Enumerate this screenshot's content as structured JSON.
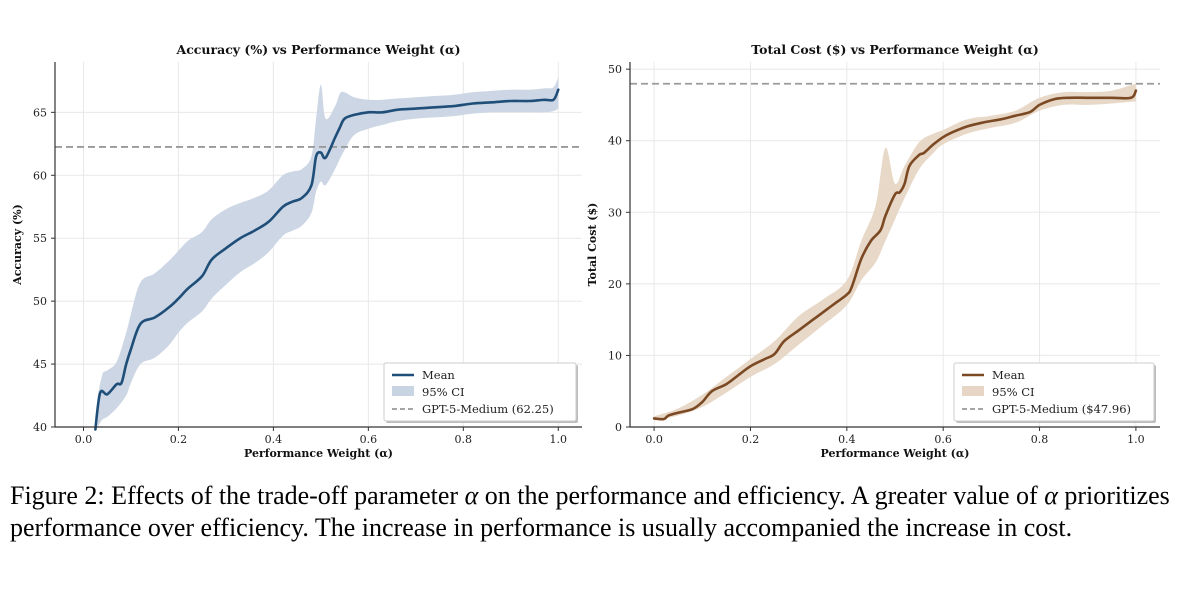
{
  "chart_data": [
    {
      "type": "line",
      "title": "Accuracy (%) vs Performance Weight (α)",
      "xlabel": "Performance Weight (α)",
      "ylabel": "Accuracy (%)",
      "xlim": [
        -0.06,
        1.05
      ],
      "ylim": [
        40,
        69
      ],
      "xticks": [
        0.0,
        0.2,
        0.4,
        0.6,
        0.8,
        1.0
      ],
      "xtick_labels": [
        "0.0",
        "0.2",
        "0.4",
        "0.6",
        "0.8",
        "1.0"
      ],
      "yticks": [
        40,
        45,
        50,
        55,
        60,
        65
      ],
      "ytick_labels": [
        "40",
        "45",
        "50",
        "55",
        "60",
        "65"
      ],
      "grid": true,
      "legend_position": "bottom-right",
      "reference_line": {
        "label": "GPT-5-Medium (62.25)",
        "value": 62.25
      },
      "series": [
        {
          "name": "Mean",
          "color": "#1f4e79",
          "x": [
            0.025,
            0.035,
            0.05,
            0.07,
            0.08,
            0.09,
            0.1,
            0.12,
            0.15,
            0.18,
            0.2,
            0.22,
            0.25,
            0.27,
            0.3,
            0.33,
            0.36,
            0.39,
            0.42,
            0.44,
            0.46,
            0.48,
            0.49,
            0.5,
            0.51,
            0.53,
            0.54,
            0.55,
            0.57,
            0.6,
            0.63,
            0.66,
            0.7,
            0.74,
            0.78,
            0.82,
            0.86,
            0.9,
            0.94,
            0.97,
            0.99,
            1.0
          ],
          "y": [
            39.8,
            42.7,
            42.6,
            43.4,
            43.5,
            45.0,
            46.2,
            48.2,
            48.7,
            49.5,
            50.2,
            51.0,
            52.0,
            53.3,
            54.2,
            55.0,
            55.6,
            56.3,
            57.5,
            57.9,
            58.2,
            59.2,
            61.5,
            61.8,
            61.4,
            63.0,
            63.8,
            64.5,
            64.8,
            65.0,
            65.0,
            65.2,
            65.3,
            65.4,
            65.5,
            65.7,
            65.8,
            65.9,
            65.9,
            66.0,
            66.0,
            66.8
          ]
        },
        {
          "name": "95% CI",
          "color": "#c9d4e3",
          "x": [
            0.03,
            0.04,
            0.05,
            0.07,
            0.09,
            0.1,
            0.12,
            0.15,
            0.18,
            0.2,
            0.22,
            0.25,
            0.27,
            0.3,
            0.33,
            0.36,
            0.39,
            0.42,
            0.44,
            0.46,
            0.48,
            0.49,
            0.5,
            0.51,
            0.53,
            0.54,
            0.55,
            0.57,
            0.6,
            0.63,
            0.66,
            0.7,
            0.74,
            0.78,
            0.82,
            0.86,
            0.9,
            0.94,
            0.97,
            0.99,
            1.0
          ],
          "lower": [
            40.0,
            40.6,
            40.8,
            41.5,
            42.5,
            43.5,
            45.0,
            45.5,
            46.5,
            47.5,
            48.3,
            49.2,
            50.2,
            51.3,
            52.3,
            53.0,
            53.9,
            55.2,
            55.6,
            56.0,
            57.0,
            58.7,
            59.5,
            59.2,
            60.5,
            61.3,
            62.0,
            63.2,
            63.7,
            64.0,
            64.3,
            64.5,
            64.6,
            64.7,
            64.9,
            65.0,
            65.0,
            65.0,
            65.0,
            65.1,
            65.3
          ],
          "upper": [
            42.5,
            44.2,
            44.5,
            45.2,
            47.5,
            49.0,
            51.5,
            52.2,
            53.2,
            54.0,
            54.8,
            55.5,
            56.5,
            57.3,
            57.8,
            58.2,
            58.8,
            60.0,
            60.3,
            60.5,
            61.5,
            64.5,
            67.2,
            64.5,
            65.5,
            66.5,
            66.6,
            66.2,
            66.0,
            66.0,
            66.1,
            66.2,
            66.3,
            66.4,
            66.6,
            66.7,
            66.8,
            66.8,
            66.9,
            67.0,
            67.8
          ]
        }
      ]
    },
    {
      "type": "line",
      "title": "Total Cost ($) vs Performance Weight (α)",
      "xlabel": "Performance Weight (α)",
      "ylabel": "Total Cost ($)",
      "xlim": [
        -0.05,
        1.05
      ],
      "ylim": [
        0,
        51
      ],
      "xticks": [
        0.0,
        0.2,
        0.4,
        0.6,
        0.8,
        1.0
      ],
      "xtick_labels": [
        "0.0",
        "0.2",
        "0.4",
        "0.6",
        "0.8",
        "1.0"
      ],
      "yticks": [
        0,
        10,
        20,
        30,
        40,
        50
      ],
      "ytick_labels": [
        "0",
        "10",
        "20",
        "30",
        "40",
        "50"
      ],
      "grid": true,
      "legend_position": "bottom-right",
      "reference_line": {
        "label": "GPT-5-Medium ($47.96)",
        "value": 47.96
      },
      "series": [
        {
          "name": "Mean",
          "color": "#7b4a24",
          "x": [
            0.0,
            0.02,
            0.03,
            0.05,
            0.08,
            0.1,
            0.12,
            0.15,
            0.18,
            0.2,
            0.23,
            0.25,
            0.27,
            0.3,
            0.33,
            0.36,
            0.38,
            0.4,
            0.41,
            0.43,
            0.45,
            0.47,
            0.48,
            0.5,
            0.51,
            0.52,
            0.53,
            0.55,
            0.56,
            0.58,
            0.6,
            0.62,
            0.65,
            0.68,
            0.72,
            0.75,
            0.78,
            0.8,
            0.83,
            0.86,
            0.9,
            0.95,
            0.99,
            1.0
          ],
          "y": [
            1.2,
            1.1,
            1.6,
            2.0,
            2.5,
            3.5,
            5.0,
            6.0,
            7.5,
            8.5,
            9.5,
            10.2,
            12.0,
            13.5,
            15.0,
            16.5,
            17.5,
            18.5,
            19.5,
            23.5,
            26.0,
            27.5,
            29.5,
            32.5,
            32.8,
            34.0,
            36.5,
            38.0,
            38.3,
            39.5,
            40.5,
            41.2,
            42.0,
            42.5,
            43.0,
            43.5,
            44.0,
            45.0,
            45.8,
            46.0,
            46.0,
            46.0,
            46.0,
            47.0
          ]
        },
        {
          "name": "95% CI",
          "color": "#e7d6c5",
          "x": [
            0.0,
            0.05,
            0.1,
            0.15,
            0.2,
            0.25,
            0.3,
            0.35,
            0.4,
            0.43,
            0.46,
            0.48,
            0.5,
            0.52,
            0.55,
            0.58,
            0.6,
            0.65,
            0.7,
            0.75,
            0.8,
            0.85,
            0.9,
            0.95,
            1.0
          ],
          "lower": [
            0.9,
            1.6,
            2.8,
            4.8,
            7.0,
            8.8,
            11.5,
            14.2,
            17.0,
            20.5,
            23.0,
            26.0,
            29.0,
            32.0,
            36.0,
            38.3,
            39.5,
            41.0,
            41.8,
            42.5,
            44.2,
            45.0,
            45.0,
            45.2,
            45.5
          ],
          "upper": [
            1.5,
            2.6,
            4.5,
            7.0,
            9.5,
            12.0,
            15.5,
            17.8,
            20.5,
            26.0,
            31.0,
            39.0,
            34.0,
            36.5,
            39.8,
            41.0,
            41.5,
            43.0,
            43.5,
            44.2,
            46.0,
            46.8,
            46.8,
            47.0,
            48.0
          ]
        }
      ]
    }
  ],
  "caption": {
    "prefix": "Figure 2:",
    "part1": "Effects of the trade-off parameter",
    "alpha1": "α",
    "part2": "on the performance and efficiency. A greater value of",
    "alpha2": "α",
    "part3": "prioritizes performance over efficiency. The increase in performance is usually accompanied the increase in cost."
  }
}
